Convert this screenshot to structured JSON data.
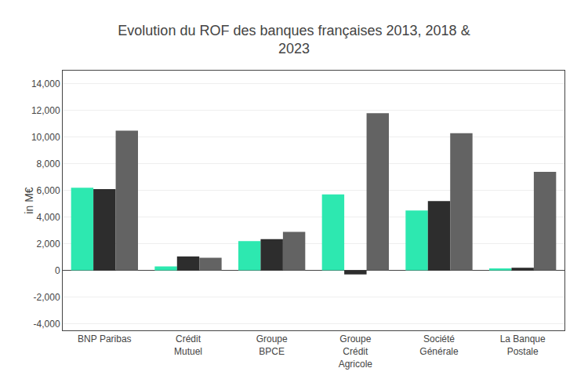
{
  "chart_data": {
    "type": "bar",
    "title": "Evolution du ROF des banques françaises 2013, 2018 &\n2023",
    "ylabel": "in M€",
    "categories": [
      "BNP Paribas",
      "Crédit\nMutuel",
      "Groupe\nBPCE",
      "Groupe\nCrédit\nAgricole",
      "Société\nGénérale",
      "La Banque\nPostale"
    ],
    "series": [
      {
        "color": "#2de8b0",
        "values": [
          6200,
          300,
          2200,
          5700,
          4500,
          150
        ]
      },
      {
        "color": "#2d2d2d",
        "values": [
          6100,
          1050,
          2350,
          -300,
          5200,
          200
        ]
      },
      {
        "color": "#636363",
        "values": [
          10500,
          950,
          2900,
          11800,
          10300,
          7400
        ]
      }
    ],
    "ylim": [
      -4500,
      15000
    ],
    "yticks": [
      {
        "value": -4000,
        "label": "-4,000"
      },
      {
        "value": -2000,
        "label": "-2,000"
      },
      0,
      {
        "value": 2000,
        "label": "2,000"
      },
      {
        "value": 4000,
        "label": "4,000"
      },
      {
        "value": 6000,
        "label": "6,000"
      },
      {
        "value": 8000,
        "label": "8,000"
      },
      {
        "value": 10000,
        "label": "10,000"
      },
      {
        "value": 12000,
        "label": "12,000"
      },
      {
        "value": 14000,
        "label": "14,000"
      }
    ],
    "grid": true
  }
}
